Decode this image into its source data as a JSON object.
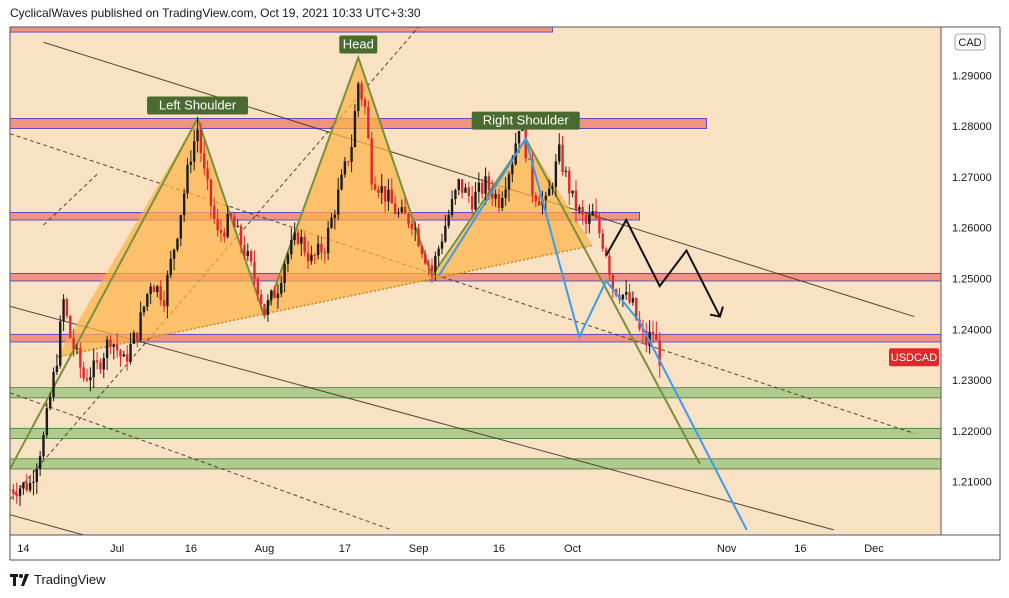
{
  "header": {
    "publisher": "CyclicalWaves published on TradingView.com, Oct 19, 2021 10:33 UTC+3:30"
  },
  "footer": {
    "brand": "TradingView"
  },
  "colors": {
    "background_zone": "#f7d7b0",
    "band_salmon": "#f08b78",
    "band_green": "#a9c98a",
    "triangle_fill": "#ffb347",
    "pattern_line": "#7a8f3a",
    "label_bg": "#4a6b2f",
    "blue_path": "#3d9be9",
    "candle_up": "#1b1b1b",
    "candle_down": "#e0272c",
    "price_tag": "#e0272c"
  },
  "chart_data": {
    "type": "candlestick",
    "symbol": "USDCAD",
    "currency": "CAD",
    "x_ticks": [
      {
        "label": "14",
        "t": 5
      },
      {
        "label": "Jul",
        "t": 19
      },
      {
        "label": "16",
        "t": 30
      },
      {
        "label": "Aug",
        "t": 41
      },
      {
        "label": "17",
        "t": 53
      },
      {
        "label": "Sep",
        "t": 64
      },
      {
        "label": "16",
        "t": 76
      },
      {
        "label": "Oct",
        "t": 87
      },
      {
        "label": "Nov",
        "t": 110
      },
      {
        "label": "16",
        "t": 121
      },
      {
        "label": "Dec",
        "t": 132
      }
    ],
    "x_range": [
      3,
      142
    ],
    "ylim": [
      1.1995,
      1.2995
    ],
    "y_ticks": [
      1.21,
      1.22,
      1.23,
      1.24,
      1.25,
      1.26,
      1.27,
      1.28,
      1.29
    ],
    "y_tick_labels": [
      "1.21000",
      "1.22000",
      "1.23000",
      "1.24000",
      "1.25000",
      "1.26000",
      "1.27000",
      "1.28000",
      "1.29000"
    ],
    "close_path": [
      [
        3,
        1.2085
      ],
      [
        6,
        1.2095
      ],
      [
        8,
        1.2185
      ],
      [
        10,
        1.2345
      ],
      [
        11,
        1.2455
      ],
      [
        12,
        1.2385
      ],
      [
        14,
        1.2305
      ],
      [
        16,
        1.2325
      ],
      [
        18,
        1.2385
      ],
      [
        20,
        1.2335
      ],
      [
        22,
        1.2395
      ],
      [
        24,
        1.2495
      ],
      [
        26,
        1.2465
      ],
      [
        28,
        1.2595
      ],
      [
        30,
        1.2745
      ],
      [
        31,
        1.2795
      ],
      [
        32,
        1.2705
      ],
      [
        34,
        1.2585
      ],
      [
        36,
        1.2615
      ],
      [
        38,
        1.2555
      ],
      [
        40,
        1.2485
      ],
      [
        41,
        1.2435
      ],
      [
        43,
        1.2485
      ],
      [
        44,
        1.2535
      ],
      [
        46,
        1.2585
      ],
      [
        48,
        1.2535
      ],
      [
        50,
        1.2565
      ],
      [
        52,
        1.2665
      ],
      [
        54,
        1.2765
      ],
      [
        55,
        1.2885
      ],
      [
        56,
        1.2835
      ],
      [
        57,
        1.2705
      ],
      [
        59,
        1.2665
      ],
      [
        61,
        1.2625
      ],
      [
        63,
        1.2615
      ],
      [
        65,
        1.2545
      ],
      [
        66,
        1.2515
      ],
      [
        68,
        1.2605
      ],
      [
        70,
        1.2685
      ],
      [
        72,
        1.2655
      ],
      [
        74,
        1.2685
      ],
      [
        76,
        1.2655
      ],
      [
        78,
        1.2735
      ],
      [
        79,
        1.2805
      ],
      [
        80,
        1.2755
      ],
      [
        81,
        1.2675
      ],
      [
        83,
        1.2645
      ],
      [
        85,
        1.2745
      ],
      [
        87,
        1.2655
      ],
      [
        89,
        1.2605
      ],
      [
        90,
        1.2625
      ],
      [
        92,
        1.2555
      ],
      [
        93,
        1.2485
      ],
      [
        94,
        1.2475
      ],
      [
        96,
        1.2445
      ],
      [
        97,
        1.2395
      ],
      [
        98,
        1.2375
      ],
      [
        99,
        1.2395
      ],
      [
        100,
        1.2345
      ]
    ],
    "zones": [
      {
        "low": 1.2985,
        "high": 1.304,
        "t_end": 84,
        "kind": "salmon"
      },
      {
        "low": 1.2795,
        "high": 1.2815,
        "t_end": 107,
        "kind": "salmon"
      },
      {
        "low": 1.2615,
        "high": 1.263,
        "t_end": 97,
        "kind": "salmon"
      },
      {
        "low": 1.2495,
        "high": 1.251,
        "t_end": 142,
        "kind": "salmon"
      },
      {
        "low": 1.2375,
        "high": 1.239,
        "t_end": 142,
        "kind": "salmon"
      },
      {
        "low": 1.2265,
        "high": 1.2285,
        "t_end": 142,
        "kind": "green"
      },
      {
        "low": 1.2185,
        "high": 1.2205,
        "t_end": 142,
        "kind": "green"
      },
      {
        "low": 1.2125,
        "high": 1.2145,
        "t_end": 142,
        "kind": "green"
      }
    ],
    "pattern": {
      "points": [
        [
          3,
          1.2125
        ],
        [
          31,
          1.2815
        ],
        [
          41,
          1.2425
        ],
        [
          55,
          1.2935
        ],
        [
          66,
          1.2505
        ],
        [
          80,
          1.2775
        ],
        [
          106,
          1.2135
        ]
      ],
      "neckline": [
        [
          10,
          1.2345
        ],
        [
          90,
          1.2565
        ]
      ],
      "labels": [
        {
          "text": "Left Shoulder",
          "t": 31,
          "y": 1.2815
        },
        {
          "text": "Head",
          "t": 55,
          "y": 1.2935
        },
        {
          "text": "Right Shoulder",
          "t": 80,
          "y": 1.2785
        }
      ]
    },
    "blue_path": [
      [
        67,
        1.2505
      ],
      [
        80,
        1.2775
      ],
      [
        88,
        1.2385
      ],
      [
        92,
        1.2495
      ],
      [
        97,
        1.2415
      ],
      [
        113,
        1.2005
      ]
    ],
    "black_path": [
      [
        92,
        1.2545
      ],
      [
        95,
        1.2615
      ],
      [
        100,
        1.2485
      ],
      [
        104,
        1.2555
      ],
      [
        109,
        1.2425
      ]
    ],
    "arrow_head": "down",
    "channel_lines": [
      {
        "p1": [
          8,
          1.2965
        ],
        "p2": [
          138,
          1.2425
        ],
        "style": "solid"
      },
      {
        "p1": [
          3,
          1.2445
        ],
        "p2": [
          126,
          1.2005
        ],
        "style": "solid"
      },
      {
        "p1": [
          3,
          1.2785
        ],
        "p2": [
          138,
          1.2195
        ],
        "style": "dashed"
      },
      {
        "p1": [
          3,
          1.2275
        ],
        "p2": [
          60,
          1.2005
        ],
        "style": "dashed"
      },
      {
        "p1": [
          8,
          1.2605
        ],
        "p2": [
          16,
          1.2705
        ],
        "style": "dashed"
      },
      {
        "p1": [
          3,
          1.2065
        ],
        "p2": [
          64,
          1.2995
        ],
        "style": "dashed"
      },
      {
        "p1": [
          3,
          1.2035
        ],
        "p2": [
          14,
          1.1995
        ],
        "style": "solid"
      }
    ],
    "last_price_label": "USDCAD",
    "last_price": 1.2345
  }
}
